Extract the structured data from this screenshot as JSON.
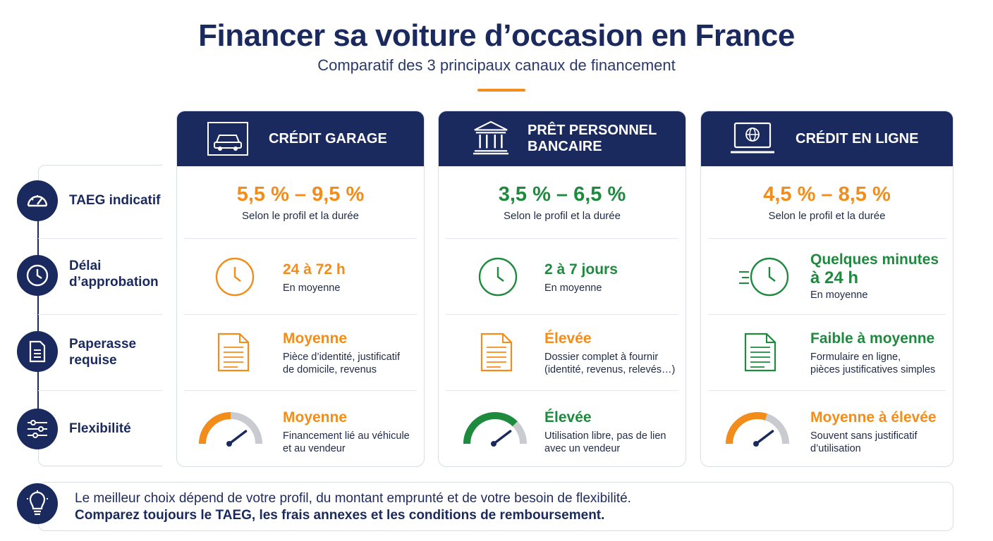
{
  "header": {
    "title": "Financer sa voiture d’occasion en France",
    "subtitle": "Comparatif des 3 principaux canaux de financement"
  },
  "criteria": [
    {
      "label_l1": "TAEG indicatif",
      "label_l2": "",
      "icon": "speedometer-icon"
    },
    {
      "label_l1": "Délai",
      "label_l2": "d’approbation",
      "icon": "clock-icon"
    },
    {
      "label_l1": "Paperasse",
      "label_l2": "requise",
      "icon": "document-icon"
    },
    {
      "label_l1": "Flexibilité",
      "label_l2": "",
      "icon": "sliders-icon"
    }
  ],
  "cards": [
    {
      "title_l1": "CRÉDIT GARAGE",
      "title_l2": "",
      "icon": "car-icon",
      "taeg": "5,5 % – 9,5 %",
      "taeg_note": "Selon le profil et la durée",
      "taeg_color": "#f28c1b",
      "delay_value_l1": "24 à 72 h",
      "delay_value_l2": "",
      "delay_note": "En moyenne",
      "delay_color": "#f28c1b",
      "paper_value": "Moyenne",
      "paper_note_l1": "Pièce d’identité, justificatif",
      "paper_note_l2": "de domicile, revenus",
      "paper_color": "#f28c1b",
      "flex_value": "Moyenne",
      "flex_note_l1": "Financement lié au véhicule",
      "flex_note_l2": "et au vendeur",
      "flex_color": "#f28c1b",
      "flex_level": 0.5
    },
    {
      "title_l1": "PRÊT PERSONNEL",
      "title_l2": "BANCAIRE",
      "icon": "bank-icon",
      "taeg": "3,5 % – 6,5 %",
      "taeg_note": "Selon le profil et la durée",
      "taeg_color": "#1e8a3e",
      "delay_value_l1": "2 à 7 jours",
      "delay_value_l2": "",
      "delay_note": "En moyenne",
      "delay_color": "#1e8a3e",
      "paper_value": "Élevée",
      "paper_note_l1": "Dossier complet à fournir",
      "paper_note_l2": "(identité, revenus, relevés…)",
      "paper_color": "#f28c1b",
      "flex_value": "Élevée",
      "flex_note_l1": "Utilisation libre, pas de lien",
      "flex_note_l2": "avec un vendeur",
      "flex_color": "#1e8a3e",
      "flex_level": 0.75
    },
    {
      "title_l1": "CRÉDIT EN LIGNE",
      "title_l2": "",
      "icon": "laptop-globe-icon",
      "taeg": "4,5 % – 8,5 %",
      "taeg_note": "Selon le profil et la durée",
      "taeg_color": "#f28c1b",
      "delay_value_l1": "Quelques minutes",
      "delay_value_l2": "à 24 h",
      "delay_note": "En moyenne",
      "delay_color": "#1e8a3e",
      "paper_value": "Faible à moyenne",
      "paper_note_l1": "Formulaire en ligne,",
      "paper_note_l2": "pièces justificatives simples",
      "paper_color": "#1e8a3e",
      "flex_value": "Moyenne à élevée",
      "flex_note_l1": "Souvent sans justificatif",
      "flex_note_l2": "d’utilisation",
      "flex_color": "#f28c1b",
      "flex_level": 0.6
    }
  ],
  "footer": {
    "line1": "Le meilleur choix dépend de votre profil, du montant emprunté et de votre besoin de flexibilité.",
    "line2": "Comparez toujours le TAEG, les frais annexes et les conditions de remboursement.",
    "icon": "lightbulb-icon"
  }
}
